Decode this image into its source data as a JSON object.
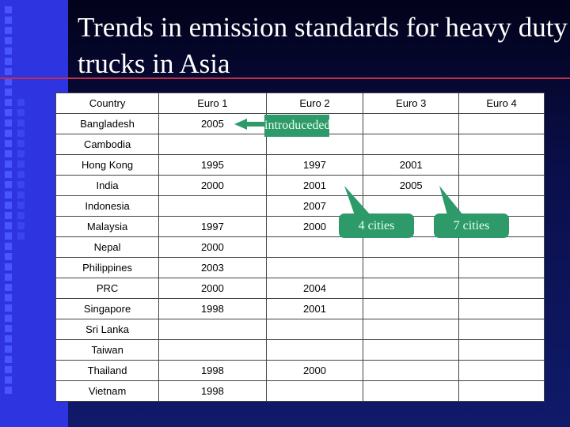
{
  "title": "Trends in emission standards for heavy duty trucks in Asia",
  "table": {
    "headers": [
      "Country",
      "Euro 1",
      "Euro 2",
      "Euro 3",
      "Euro 4"
    ],
    "rows": [
      [
        "Bangladesh",
        "2005",
        "",
        "",
        ""
      ],
      [
        "Cambodia",
        "",
        "",
        "",
        ""
      ],
      [
        "Hong Kong",
        "1995",
        "1997",
        "2001",
        ""
      ],
      [
        "India",
        "2000",
        "2001",
        "2005",
        ""
      ],
      [
        "Indonesia",
        "",
        "2007",
        "",
        ""
      ],
      [
        "Malaysia",
        "1997",
        "2000",
        "",
        ""
      ],
      [
        "Nepal",
        "2000",
        "",
        "",
        ""
      ],
      [
        "Philippines",
        "2003",
        "",
        "",
        ""
      ],
      [
        "PRC",
        "2000",
        "2004",
        "",
        ""
      ],
      [
        "Singapore",
        "1998",
        "2001",
        "",
        ""
      ],
      [
        "Sri Lanka",
        "",
        "",
        "",
        ""
      ],
      [
        "Taiwan",
        "",
        "",
        "",
        ""
      ],
      [
        "Thailand",
        "1998",
        "2000",
        "",
        ""
      ],
      [
        "Vietnam",
        "1998",
        "",
        "",
        ""
      ]
    ]
  },
  "callouts": {
    "introduced": "introduceded",
    "four_cities": "4 cities",
    "seven_cities": "7 cities"
  },
  "colors": {
    "callout": "#2e9a6a",
    "accent_line": "#c0304a",
    "sidebar": "#2e35e0"
  }
}
